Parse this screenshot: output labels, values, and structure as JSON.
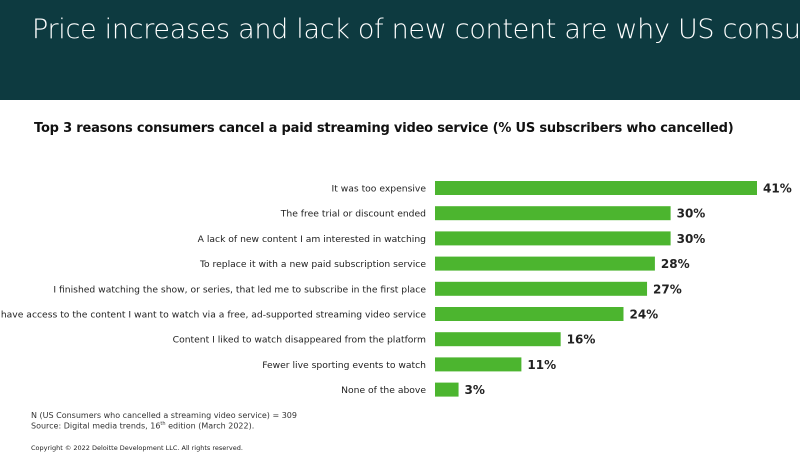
{
  "header": {
    "title": "Price increases and lack of new content are why US consumers cancel"
  },
  "chart_data": {
    "type": "bar",
    "orientation": "horizontal",
    "title": "Top 3 reasons consumers cancel a paid streaming video service (% US subscribers who cancelled)",
    "categories": [
      "It was too expensive",
      "The free trial or discount ended",
      "A lack of new content I am interested in watching",
      "To replace it with a new paid subscription service",
      "I finished watching the show, or series, that led me to subscribe in the first place",
      "I have access to the content I want to watch via a free, ad-supported streaming video service",
      "Content  I liked to watch disappeared from the platform",
      "Fewer live sporting events to watch",
      "None of the above"
    ],
    "values": [
      41,
      30,
      30,
      28,
      27,
      24,
      16,
      11,
      3
    ],
    "value_labels": [
      "41%",
      "30%",
      "30%",
      "28%",
      "27%",
      "24%",
      "16%",
      "11%",
      "3%"
    ],
    "unit": "%",
    "xlim": [
      0,
      41
    ],
    "bar_color": "#4cb52f",
    "grid": false,
    "legend": "none"
  },
  "footnotes": {
    "line1": "N (US Consumers who cancelled a streaming video service) = 309",
    "line2_prefix": "Source: Digital media trends, 16",
    "line2_sup": "th",
    "line2_suffix": " edition (March 2022)."
  },
  "copyright": "Copyright © 2022 Deloitte Development LLC. All rights reserved.",
  "colors": {
    "header_bg": "#0d3a40",
    "bar": "#4cb52f"
  }
}
